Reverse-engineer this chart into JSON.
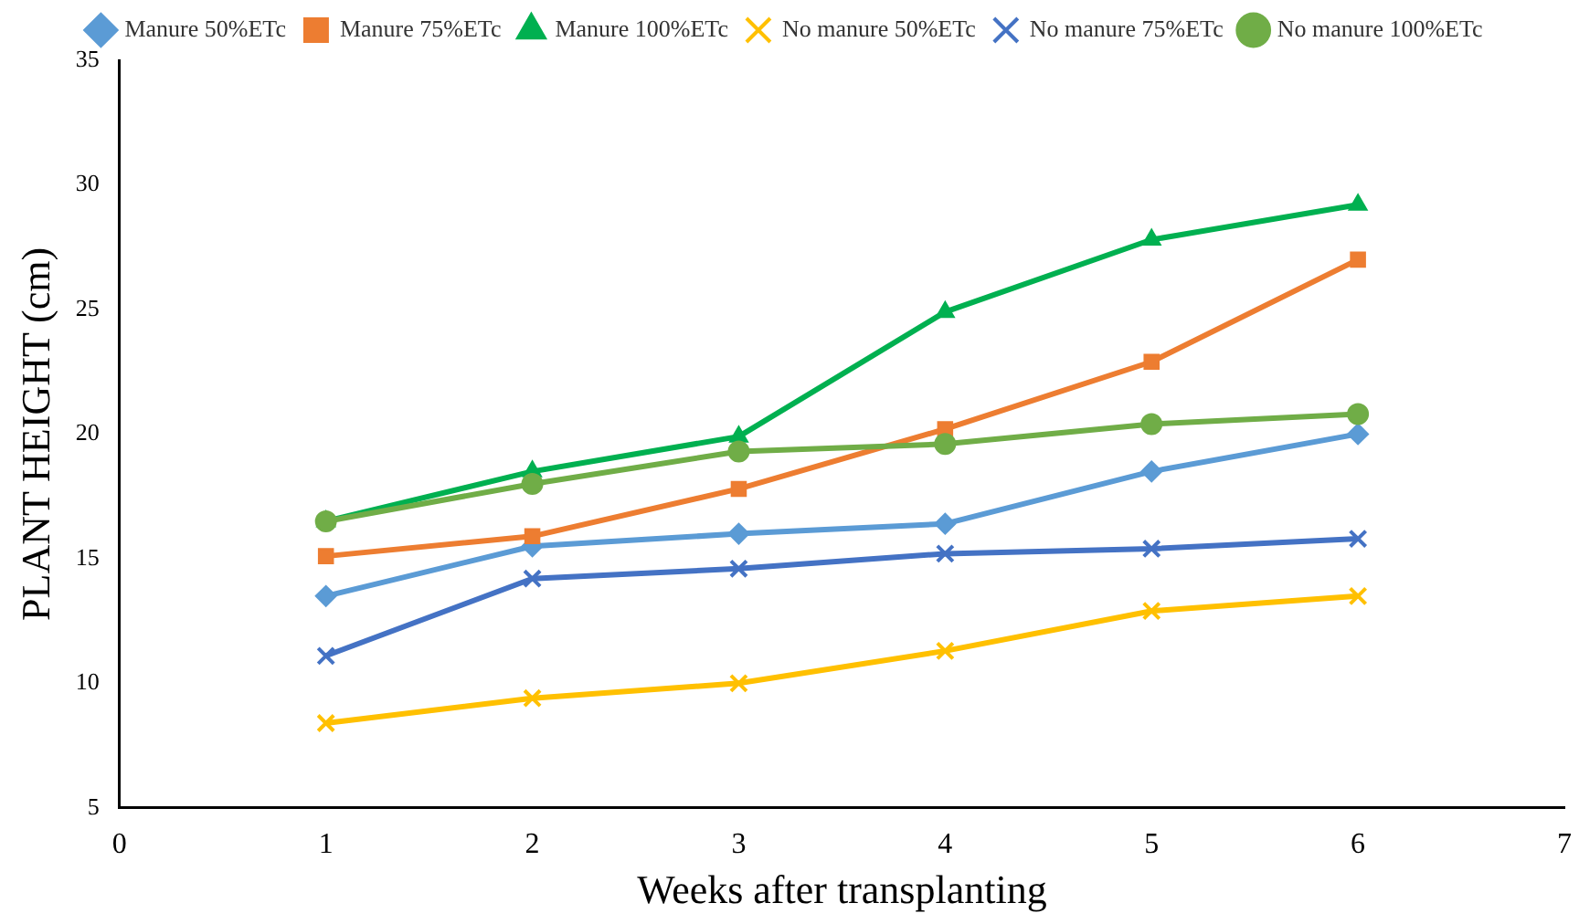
{
  "chart_data": {
    "type": "line",
    "xlabel": "Weeks after transplanting",
    "ylabel": "PLANT HEIGHT (cm)",
    "x": [
      1,
      2,
      3,
      4,
      5,
      6
    ],
    "xlim": [
      0,
      7
    ],
    "xticks": [
      0,
      1,
      2,
      3,
      4,
      5,
      6,
      7
    ],
    "ylim": [
      5,
      35
    ],
    "yticks": [
      5,
      10,
      15,
      20,
      25,
      30,
      35
    ],
    "grid": false,
    "legend": "top",
    "series": [
      {
        "name": "Manure 50%ETc",
        "color": "#5b9bd5",
        "marker": "diamond",
        "values": [
          13.5,
          15.5,
          16.0,
          16.4,
          18.5,
          20.0
        ]
      },
      {
        "name": "Manure 75%ETc",
        "color": "#ed7d31",
        "marker": "square",
        "values": [
          15.1,
          15.9,
          17.8,
          20.2,
          22.9,
          27.0
        ]
      },
      {
        "name": "Manure 100%ETc",
        "color": "#00b050",
        "marker": "triangle",
        "values": [
          16.5,
          18.5,
          19.9,
          24.9,
          27.8,
          29.2
        ]
      },
      {
        "name": "No manure 50%ETc",
        "color": "#ffc000",
        "marker": "cross",
        "values": [
          8.4,
          9.4,
          10.0,
          11.3,
          12.9,
          13.5
        ]
      },
      {
        "name": "No manure 75%ETc",
        "color": "#4472c4",
        "marker": "cross",
        "values": [
          11.1,
          14.2,
          14.6,
          15.2,
          15.4,
          15.8
        ]
      },
      {
        "name": "No manure 100%ETc",
        "color": "#70ad47",
        "marker": "circle",
        "values": [
          16.5,
          18.0,
          19.3,
          19.6,
          20.4,
          20.8
        ]
      }
    ]
  }
}
